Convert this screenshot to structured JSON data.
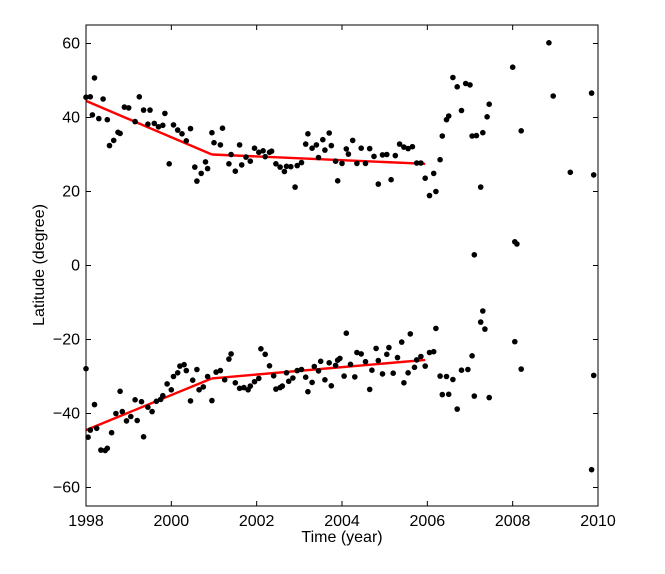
{
  "chart_data": {
    "type": "scatter",
    "title": "",
    "xlabel": "Time (year)",
    "ylabel": "Latitude (degree)",
    "xlim": [
      1998,
      2010
    ],
    "ylim": [
      -65,
      65
    ],
    "xticks": [
      1998,
      2000,
      2002,
      2004,
      2006,
      2008,
      2010
    ],
    "yticks": [
      -60,
      -40,
      -20,
      0,
      20,
      40,
      60
    ],
    "grid": false,
    "legend": "none",
    "colors": {
      "points": "#000000",
      "fit": "#ff0000",
      "axes": "#000000"
    },
    "points": [
      [
        1998.0,
        -27.9
      ],
      [
        1998.05,
        -46.4
      ],
      [
        1998.1,
        -44.5
      ],
      [
        1998.2,
        -37.6
      ],
      [
        1998.25,
        -44.0
      ],
      [
        1998.35,
        -49.9
      ],
      [
        1998.45,
        -50.0
      ],
      [
        1998.5,
        -49.4
      ],
      [
        1998.6,
        -45.2
      ],
      [
        1998.7,
        -40.0
      ],
      [
        1998.8,
        -34.0
      ],
      [
        1998.85,
        -39.5
      ],
      [
        1998.95,
        -42.0
      ],
      [
        1999.05,
        -40.8
      ],
      [
        1999.15,
        -36.3
      ],
      [
        1999.2,
        -41.9
      ],
      [
        1999.3,
        -36.8
      ],
      [
        1999.35,
        -46.3
      ],
      [
        1999.45,
        -38.3
      ],
      [
        1999.55,
        -39.5
      ],
      [
        1999.65,
        -36.7
      ],
      [
        1999.75,
        -36.2
      ],
      [
        1999.8,
        -35.2
      ],
      [
        1999.9,
        -32.0
      ],
      [
        2000.0,
        -33.6
      ],
      [
        2000.05,
        -30.0
      ],
      [
        2000.15,
        -29.0
      ],
      [
        2000.2,
        -27.2
      ],
      [
        2000.3,
        -26.8
      ],
      [
        2000.35,
        -28.4
      ],
      [
        2000.45,
        -36.6
      ],
      [
        2000.5,
        -31.0
      ],
      [
        2000.6,
        -28.1
      ],
      [
        2000.65,
        -33.6
      ],
      [
        2000.75,
        -32.8
      ],
      [
        2000.85,
        -30.0
      ],
      [
        2000.95,
        -36.5
      ],
      [
        2001.05,
        -28.8
      ],
      [
        2001.15,
        -28.4
      ],
      [
        2001.25,
        -30.9
      ],
      [
        2001.35,
        -25.3
      ],
      [
        2001.4,
        -23.9
      ],
      [
        2001.5,
        -31.7
      ],
      [
        2001.6,
        -33.2
      ],
      [
        2001.7,
        -33.0
      ],
      [
        2001.8,
        -33.6
      ],
      [
        2001.85,
        -32.6
      ],
      [
        2001.95,
        -31.4
      ],
      [
        2002.05,
        -30.5
      ],
      [
        2002.1,
        -22.5
      ],
      [
        2002.2,
        -24.0
      ],
      [
        2002.3,
        -27.1
      ],
      [
        2002.4,
        -29.8
      ],
      [
        2002.45,
        -33.4
      ],
      [
        2002.55,
        -33.0
      ],
      [
        2002.6,
        -32.6
      ],
      [
        2002.7,
        -29.0
      ],
      [
        2002.75,
        -31.3
      ],
      [
        2002.85,
        -30.4
      ],
      [
        2002.95,
        -28.4
      ],
      [
        2003.05,
        -28.1
      ],
      [
        2003.15,
        -30.2
      ],
      [
        2003.2,
        -34.1
      ],
      [
        2003.3,
        -31.6
      ],
      [
        2003.35,
        -27.3
      ],
      [
        2003.45,
        -28.5
      ],
      [
        2003.5,
        -25.9
      ],
      [
        2003.6,
        -30.9
      ],
      [
        2003.7,
        -26.3
      ],
      [
        2003.75,
        -32.5
      ],
      [
        2003.85,
        -27.0
      ],
      [
        2003.9,
        -25.6
      ],
      [
        2003.95,
        -25.1
      ],
      [
        2004.05,
        -29.9
      ],
      [
        2004.1,
        -18.3
      ],
      [
        2004.2,
        -26.7
      ],
      [
        2004.3,
        -30.1
      ],
      [
        2004.35,
        -23.5
      ],
      [
        2004.45,
        -23.9
      ],
      [
        2004.55,
        -26.0
      ],
      [
        2004.65,
        -33.5
      ],
      [
        2004.7,
        -28.3
      ],
      [
        2004.8,
        -22.4
      ],
      [
        2004.85,
        -25.7
      ],
      [
        2004.95,
        -29.3
      ],
      [
        2005.05,
        -24.0
      ],
      [
        2005.1,
        -22.2
      ],
      [
        2005.2,
        -29.1
      ],
      [
        2005.3,
        -24.9
      ],
      [
        2005.4,
        -20.7
      ],
      [
        2005.45,
        -31.7
      ],
      [
        2005.55,
        -29.0
      ],
      [
        2005.6,
        -18.5
      ],
      [
        2005.7,
        -27.5
      ],
      [
        2005.75,
        -25.5
      ],
      [
        2005.85,
        -24.6
      ],
      [
        2005.95,
        -27.2
      ],
      [
        2006.05,
        -23.5
      ],
      [
        2006.15,
        -23.3
      ],
      [
        2006.2,
        -17.0
      ],
      [
        2006.3,
        -29.9
      ],
      [
        2006.35,
        -34.9
      ],
      [
        2006.45,
        -30.0
      ],
      [
        2006.5,
        -34.8
      ],
      [
        2006.6,
        -30.8
      ],
      [
        2006.7,
        -38.8
      ],
      [
        2006.8,
        -28.3
      ],
      [
        2006.95,
        -28.1
      ],
      [
        2007.05,
        -24.4
      ],
      [
        2007.1,
        -35.3
      ],
      [
        2007.25,
        -15.3
      ],
      [
        2007.3,
        -12.3
      ],
      [
        2007.35,
        -17.2
      ],
      [
        2007.45,
        -35.7
      ],
      [
        2008.05,
        -20.6
      ],
      [
        2008.2,
        -28.0
      ],
      [
        2009.85,
        -55.2
      ],
      [
        2009.9,
        -29.7
      ],
      [
        1998.0,
        45.5
      ],
      [
        1998.1,
        45.6
      ],
      [
        1998.15,
        40.7
      ],
      [
        1998.2,
        50.7
      ],
      [
        1998.3,
        39.7
      ],
      [
        1998.4,
        45.0
      ],
      [
        1998.5,
        39.4
      ],
      [
        1998.55,
        32.4
      ],
      [
        1998.65,
        33.8
      ],
      [
        1998.75,
        36.0
      ],
      [
        1998.8,
        35.7
      ],
      [
        1998.9,
        42.8
      ],
      [
        1999.0,
        42.6
      ],
      [
        1999.15,
        38.9
      ],
      [
        1999.25,
        45.6
      ],
      [
        1999.35,
        42.0
      ],
      [
        1999.45,
        38.2
      ],
      [
        1999.5,
        42.0
      ],
      [
        1999.6,
        38.4
      ],
      [
        1999.7,
        37.5
      ],
      [
        1999.8,
        37.9
      ],
      [
        1999.85,
        41.1
      ],
      [
        1999.95,
        27.5
      ],
      [
        2000.05,
        38.0
      ],
      [
        2000.15,
        36.6
      ],
      [
        2000.25,
        35.6
      ],
      [
        2000.35,
        33.7
      ],
      [
        2000.45,
        37.0
      ],
      [
        2000.55,
        26.6
      ],
      [
        2000.6,
        22.8
      ],
      [
        2000.7,
        24.9
      ],
      [
        2000.8,
        28.0
      ],
      [
        2000.85,
        26.2
      ],
      [
        2000.95,
        35.9
      ],
      [
        2001.0,
        33.2
      ],
      [
        2001.15,
        32.6
      ],
      [
        2001.2,
        37.1
      ],
      [
        2001.35,
        27.5
      ],
      [
        2001.4,
        30.0
      ],
      [
        2001.5,
        25.5
      ],
      [
        2001.6,
        32.6
      ],
      [
        2001.65,
        27.2
      ],
      [
        2001.75,
        29.3
      ],
      [
        2001.85,
        28.2
      ],
      [
        2001.95,
        31.7
      ],
      [
        2002.05,
        30.6
      ],
      [
        2002.15,
        31.0
      ],
      [
        2002.2,
        29.4
      ],
      [
        2002.3,
        30.6
      ],
      [
        2002.35,
        30.9
      ],
      [
        2002.45,
        27.5
      ],
      [
        2002.55,
        26.6
      ],
      [
        2002.65,
        25.4
      ],
      [
        2002.7,
        26.8
      ],
      [
        2002.8,
        26.7
      ],
      [
        2002.9,
        21.2
      ],
      [
        2002.95,
        27.0
      ],
      [
        2003.05,
        27.8
      ],
      [
        2003.15,
        32.8
      ],
      [
        2003.2,
        35.6
      ],
      [
        2003.3,
        31.7
      ],
      [
        2003.4,
        32.6
      ],
      [
        2003.45,
        29.2
      ],
      [
        2003.55,
        34.0
      ],
      [
        2003.6,
        31.2
      ],
      [
        2003.7,
        35.8
      ],
      [
        2003.75,
        32.4
      ],
      [
        2003.85,
        28.2
      ],
      [
        2003.9,
        22.9
      ],
      [
        2004.0,
        27.6
      ],
      [
        2004.1,
        31.5
      ],
      [
        2004.15,
        30.1
      ],
      [
        2004.25,
        33.8
      ],
      [
        2004.35,
        27.6
      ],
      [
        2004.45,
        31.7
      ],
      [
        2004.55,
        27.6
      ],
      [
        2004.65,
        31.6
      ],
      [
        2004.75,
        29.5
      ],
      [
        2004.85,
        22.0
      ],
      [
        2004.95,
        29.9
      ],
      [
        2005.05,
        30.0
      ],
      [
        2005.15,
        23.2
      ],
      [
        2005.25,
        29.7
      ],
      [
        2005.35,
        32.8
      ],
      [
        2005.45,
        32.0
      ],
      [
        2005.55,
        31.6
      ],
      [
        2005.65,
        32.1
      ],
      [
        2005.75,
        27.7
      ],
      [
        2005.85,
        27.7
      ],
      [
        2005.95,
        23.6
      ],
      [
        2006.05,
        18.9
      ],
      [
        2006.15,
        24.9
      ],
      [
        2006.2,
        20.0
      ],
      [
        2006.3,
        28.6
      ],
      [
        2006.35,
        35.0
      ],
      [
        2006.45,
        39.4
      ],
      [
        2006.5,
        40.4
      ],
      [
        2006.6,
        50.8
      ],
      [
        2006.7,
        48.3
      ],
      [
        2006.8,
        41.9
      ],
      [
        2006.9,
        49.2
      ],
      [
        2007.0,
        48.8
      ],
      [
        2007.05,
        35.0
      ],
      [
        2007.15,
        35.1
      ],
      [
        2007.25,
        21.2
      ],
      [
        2007.3,
        35.9
      ],
      [
        2007.4,
        40.2
      ],
      [
        2007.45,
        43.6
      ],
      [
        2007.1,
        2.9
      ],
      [
        2008.0,
        53.6
      ],
      [
        2008.05,
        6.4
      ],
      [
        2008.1,
        5.8
      ],
      [
        2008.2,
        36.4
      ],
      [
        2008.85,
        60.2
      ],
      [
        2008.95,
        45.8
      ],
      [
        2009.35,
        25.2
      ],
      [
        2009.85,
        46.6
      ],
      [
        2009.9,
        24.5
      ]
    ],
    "fit_lines": [
      {
        "x": [
          1998.0,
          2000.95
        ],
        "y": [
          44.5,
          30.0
        ]
      },
      {
        "x": [
          2000.95,
          2005.95
        ],
        "y": [
          30.0,
          27.5
        ]
      },
      {
        "x": [
          1998.0,
          2000.95
        ],
        "y": [
          -44.5,
          -30.5
        ]
      },
      {
        "x": [
          2000.95,
          2005.95
        ],
        "y": [
          -30.5,
          -25.5
        ]
      }
    ]
  }
}
